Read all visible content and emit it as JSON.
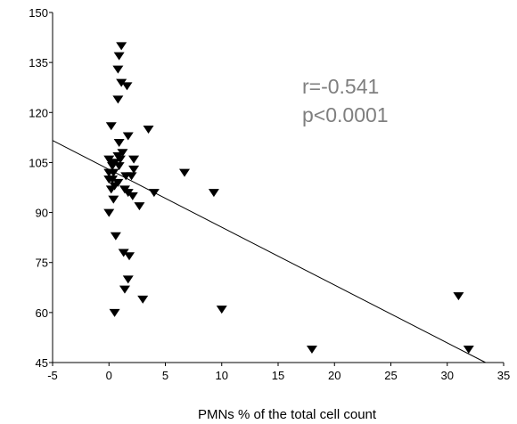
{
  "chart_data": {
    "type": "scatter",
    "title": "",
    "xlabel": "PMNs % of the total cell count",
    "ylabel": "",
    "xlim": [
      -5,
      35
    ],
    "ylim": [
      45,
      150
    ],
    "x_ticks": [
      -5,
      0,
      5,
      10,
      15,
      20,
      25,
      30,
      35
    ],
    "y_ticks": [
      45,
      60,
      75,
      90,
      105,
      120,
      135,
      150
    ],
    "x_tick_labels": [
      "-5",
      "0",
      "5",
      "10",
      "15",
      "20",
      "25",
      "30",
      "35"
    ],
    "y_tick_labels": [
      "45",
      "60",
      "75",
      "90",
      "105",
      "120",
      "135",
      "150"
    ],
    "grid": false,
    "marker": "triangle-down",
    "marker_color": "#000000",
    "annotation": {
      "line1": "r=-0.541",
      "line2": "p<0.0001",
      "color": "#7f7f7f"
    },
    "regression_line": {
      "x": [
        -5,
        33.4
      ],
      "y": [
        111.6,
        45
      ]
    },
    "points": [
      {
        "x": 1.1,
        "y": 140
      },
      {
        "x": 0.9,
        "y": 137
      },
      {
        "x": 0.8,
        "y": 133
      },
      {
        "x": 1.1,
        "y": 129
      },
      {
        "x": 1.6,
        "y": 128
      },
      {
        "x": 0.8,
        "y": 124
      },
      {
        "x": 0.2,
        "y": 116
      },
      {
        "x": 3.5,
        "y": 115
      },
      {
        "x": 1.7,
        "y": 113
      },
      {
        "x": 0.9,
        "y": 111
      },
      {
        "x": 1.2,
        "y": 108
      },
      {
        "x": 0.8,
        "y": 107
      },
      {
        "x": 1.0,
        "y": 106
      },
      {
        "x": 2.2,
        "y": 106
      },
      {
        "x": 0.0,
        "y": 106
      },
      {
        "x": 0.2,
        "y": 105
      },
      {
        "x": 0.5,
        "y": 105
      },
      {
        "x": 0.9,
        "y": 104
      },
      {
        "x": 0.3,
        "y": 104
      },
      {
        "x": 2.2,
        "y": 103
      },
      {
        "x": 6.7,
        "y": 102
      },
      {
        "x": 0.0,
        "y": 102
      },
      {
        "x": 0.4,
        "y": 102
      },
      {
        "x": 1.5,
        "y": 101
      },
      {
        "x": 2.0,
        "y": 101
      },
      {
        "x": 0.3,
        "y": 100
      },
      {
        "x": 0.0,
        "y": 100
      },
      {
        "x": 0.8,
        "y": 99
      },
      {
        "x": 0.5,
        "y": 98
      },
      {
        "x": 0.2,
        "y": 97
      },
      {
        "x": 1.4,
        "y": 97
      },
      {
        "x": 1.7,
        "y": 96
      },
      {
        "x": 4.0,
        "y": 96
      },
      {
        "x": 9.3,
        "y": 96
      },
      {
        "x": 2.1,
        "y": 95
      },
      {
        "x": 0.4,
        "y": 94
      },
      {
        "x": 2.7,
        "y": 92
      },
      {
        "x": 0.0,
        "y": 90
      },
      {
        "x": 0.6,
        "y": 83
      },
      {
        "x": 1.3,
        "y": 78
      },
      {
        "x": 1.8,
        "y": 77
      },
      {
        "x": 1.7,
        "y": 70
      },
      {
        "x": 1.4,
        "y": 67
      },
      {
        "x": 3.0,
        "y": 64
      },
      {
        "x": 10.0,
        "y": 61
      },
      {
        "x": 0.5,
        "y": 60
      },
      {
        "x": 31.0,
        "y": 65
      },
      {
        "x": 18.0,
        "y": 49
      },
      {
        "x": 31.9,
        "y": 49
      }
    ]
  }
}
